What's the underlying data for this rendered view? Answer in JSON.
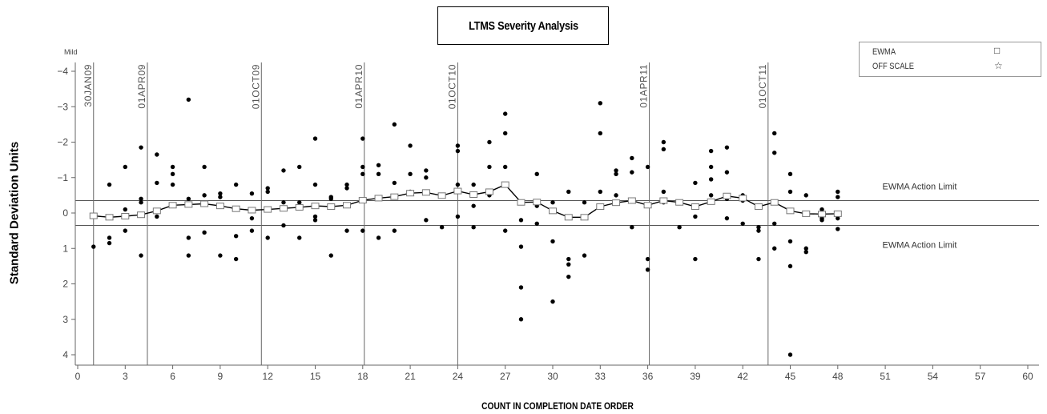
{
  "chart_data": {
    "type": "scatter",
    "title": "LTMS Severity Analysis",
    "xlabel": "COUNT IN COMPLETION DATE ORDER",
    "ylabel": "Standard Deviation Units",
    "severity_label": "Mild",
    "x_ticks": [
      0,
      3,
      6,
      9,
      12,
      15,
      18,
      21,
      24,
      27,
      30,
      33,
      36,
      39,
      42,
      45,
      48,
      51,
      54,
      57,
      60
    ],
    "y_ticks": [
      -4,
      -3,
      -2,
      -1,
      0,
      1,
      2,
      3,
      4
    ],
    "xlim": [
      0,
      60
    ],
    "ylim": [
      -4.25,
      4.25
    ],
    "y_inverted": true,
    "legend": {
      "entries": [
        "EWMA",
        "OFF SCALE"
      ],
      "symbols": [
        "square-icon",
        "star-icon"
      ],
      "placement": "top-right"
    },
    "action_limits": [
      {
        "label": "EWMA Action Limit",
        "value": -0.35
      },
      {
        "label": "EWMA Action Limit",
        "value": 0.35
      }
    ],
    "date_markers": [
      {
        "label": "30JAN09",
        "x": 1.0
      },
      {
        "label": "01APR09",
        "x": 4.4
      },
      {
        "label": "01OCT09",
        "x": 11.6
      },
      {
        "label": "01APR10",
        "x": 18.1
      },
      {
        "label": "01OCT10",
        "x": 24.0
      },
      {
        "label": "01APR11",
        "x": 36.1
      },
      {
        "label": "01OCT11",
        "x": 43.6
      }
    ],
    "points": [
      [
        1,
        0.95
      ],
      [
        2,
        -0.8
      ],
      [
        2,
        0.7
      ],
      [
        2,
        0.85
      ],
      [
        3,
        -1.3
      ],
      [
        3,
        -0.1
      ],
      [
        3,
        0.5
      ],
      [
        4,
        -1.85
      ],
      [
        4,
        -0.4
      ],
      [
        4,
        -0.3
      ],
      [
        4,
        1.2
      ],
      [
        5,
        -1.65
      ],
      [
        5,
        -0.85
      ],
      [
        5,
        0.1
      ],
      [
        6,
        -1.3
      ],
      [
        6,
        -1.1
      ],
      [
        6,
        -0.8
      ],
      [
        7,
        -3.2
      ],
      [
        7,
        -0.4
      ],
      [
        7,
        0.7
      ],
      [
        7,
        1.2
      ],
      [
        8,
        -1.3
      ],
      [
        8,
        -0.5
      ],
      [
        8,
        0.55
      ],
      [
        9,
        -0.55
      ],
      [
        9,
        -0.45
      ],
      [
        9,
        -0.2
      ],
      [
        9,
        1.2
      ],
      [
        10,
        -0.8
      ],
      [
        10,
        0.65
      ],
      [
        10,
        1.3
      ],
      [
        11,
        -0.55
      ],
      [
        11,
        0.15
      ],
      [
        11,
        0.5
      ],
      [
        12,
        -0.7
      ],
      [
        12,
        -0.6
      ],
      [
        12,
        0.7
      ],
      [
        13,
        -1.2
      ],
      [
        13,
        -0.3
      ],
      [
        13,
        0.35
      ],
      [
        14,
        -1.3
      ],
      [
        14,
        -0.3
      ],
      [
        14,
        0.7
      ],
      [
        15,
        -2.1
      ],
      [
        15,
        -0.8
      ],
      [
        15,
        0.1
      ],
      [
        15,
        0.2
      ],
      [
        16,
        -0.45
      ],
      [
        16,
        -0.4
      ],
      [
        16,
        1.2
      ],
      [
        17,
        -0.8
      ],
      [
        17,
        -0.7
      ],
      [
        17,
        0.5
      ],
      [
        18,
        -2.1
      ],
      [
        18,
        -1.3
      ],
      [
        18,
        -1.1
      ],
      [
        18,
        0.5
      ],
      [
        19,
        -1.35
      ],
      [
        19,
        -1.1
      ],
      [
        19,
        0.7
      ],
      [
        20,
        -2.5
      ],
      [
        20,
        -0.85
      ],
      [
        20,
        0.5
      ],
      [
        21,
        -1.9
      ],
      [
        21,
        -1.1
      ],
      [
        21,
        -0.6
      ],
      [
        22,
        -1.2
      ],
      [
        22,
        -1.0
      ],
      [
        22,
        -0.6
      ],
      [
        22,
        0.2
      ],
      [
        23,
        -0.5
      ],
      [
        23,
        0.4
      ],
      [
        24,
        -1.9
      ],
      [
        24,
        -1.75
      ],
      [
        24,
        -0.8
      ],
      [
        24,
        -0.6
      ],
      [
        24,
        0.1
      ],
      [
        25,
        -0.8
      ],
      [
        25,
        -0.2
      ],
      [
        25,
        0.4
      ],
      [
        26,
        -2.0
      ],
      [
        26,
        -1.3
      ],
      [
        26,
        -0.5
      ],
      [
        27,
        -2.8
      ],
      [
        27,
        -2.25
      ],
      [
        27,
        -1.3
      ],
      [
        27,
        0.5
      ],
      [
        28,
        0.2
      ],
      [
        28,
        0.95
      ],
      [
        28,
        2.1
      ],
      [
        28,
        3.0
      ],
      [
        29,
        -1.1
      ],
      [
        29,
        -0.3
      ],
      [
        29,
        -0.2
      ],
      [
        29,
        0.3
      ],
      [
        30,
        -0.3
      ],
      [
        30,
        0.8
      ],
      [
        30,
        2.5
      ],
      [
        31,
        -0.6
      ],
      [
        31,
        1.3
      ],
      [
        31,
        1.45
      ],
      [
        31,
        1.8
      ],
      [
        32,
        -0.3
      ],
      [
        32,
        1.2
      ],
      [
        33,
        -3.1
      ],
      [
        33,
        -2.25
      ],
      [
        33,
        -0.6
      ],
      [
        34,
        -1.2
      ],
      [
        34,
        -1.1
      ],
      [
        34,
        -0.5
      ],
      [
        35,
        -1.55
      ],
      [
        35,
        -1.15
      ],
      [
        35,
        0.4
      ],
      [
        36,
        -1.3
      ],
      [
        36,
        1.3
      ],
      [
        36,
        1.6
      ],
      [
        37,
        -2.0
      ],
      [
        37,
        -1.8
      ],
      [
        37,
        -0.6
      ],
      [
        37,
        -0.3
      ],
      [
        38,
        -0.3
      ],
      [
        38,
        0.4
      ],
      [
        39,
        -0.85
      ],
      [
        39,
        0.1
      ],
      [
        39,
        1.3
      ],
      [
        40,
        -1.75
      ],
      [
        40,
        -1.3
      ],
      [
        40,
        -0.95
      ],
      [
        40,
        -0.5
      ],
      [
        41,
        -1.85
      ],
      [
        41,
        -1.15
      ],
      [
        41,
        -0.4
      ],
      [
        41,
        0.15
      ],
      [
        42,
        -0.5
      ],
      [
        42,
        -0.35
      ],
      [
        42,
        0.3
      ],
      [
        43,
        0.4
      ],
      [
        43,
        0.5
      ],
      [
        43,
        1.3
      ],
      [
        44,
        -2.25
      ],
      [
        44,
        -1.7
      ],
      [
        44,
        0.3
      ],
      [
        44,
        1.0
      ],
      [
        45,
        -1.1
      ],
      [
        45,
        -0.6
      ],
      [
        45,
        0.8
      ],
      [
        45,
        1.5
      ],
      [
        45,
        4.0
      ],
      [
        46,
        -0.5
      ],
      [
        46,
        1.0
      ],
      [
        46,
        1.1
      ],
      [
        47,
        -0.1
      ],
      [
        47,
        0.15
      ],
      [
        47,
        0.2
      ],
      [
        48,
        -0.6
      ],
      [
        48,
        -0.45
      ],
      [
        48,
        0.15
      ],
      [
        48,
        0.45
      ]
    ],
    "ewma": [
      [
        1,
        0.08
      ],
      [
        2,
        0.12
      ],
      [
        3,
        0.09
      ],
      [
        4,
        0.05
      ],
      [
        5,
        -0.06
      ],
      [
        6,
        -0.22
      ],
      [
        7,
        -0.24
      ],
      [
        8,
        -0.26
      ],
      [
        9,
        -0.2
      ],
      [
        10,
        -0.12
      ],
      [
        11,
        -0.08
      ],
      [
        12,
        -0.1
      ],
      [
        13,
        -0.13
      ],
      [
        14,
        -0.16
      ],
      [
        15,
        -0.2
      ],
      [
        16,
        -0.18
      ],
      [
        17,
        -0.22
      ],
      [
        18,
        -0.36
      ],
      [
        19,
        -0.42
      ],
      [
        20,
        -0.46
      ],
      [
        21,
        -0.56
      ],
      [
        22,
        -0.58
      ],
      [
        23,
        -0.49
      ],
      [
        24,
        -0.62
      ],
      [
        25,
        -0.52
      ],
      [
        26,
        -0.6
      ],
      [
        27,
        -0.8
      ],
      [
        28,
        -0.3
      ],
      [
        29,
        -0.31
      ],
      [
        30,
        -0.06
      ],
      [
        31,
        0.12
      ],
      [
        32,
        0.12
      ],
      [
        33,
        -0.18
      ],
      [
        34,
        -0.29
      ],
      [
        35,
        -0.35
      ],
      [
        36,
        -0.22
      ],
      [
        37,
        -0.35
      ],
      [
        38,
        -0.3
      ],
      [
        39,
        -0.18
      ],
      [
        40,
        -0.32
      ],
      [
        41,
        -0.48
      ],
      [
        42,
        -0.42
      ],
      [
        43,
        -0.18
      ],
      [
        44,
        -0.3
      ],
      [
        45,
        -0.06
      ],
      [
        46,
        0.02
      ],
      [
        47,
        0.03
      ],
      [
        48,
        0.02
      ]
    ]
  }
}
